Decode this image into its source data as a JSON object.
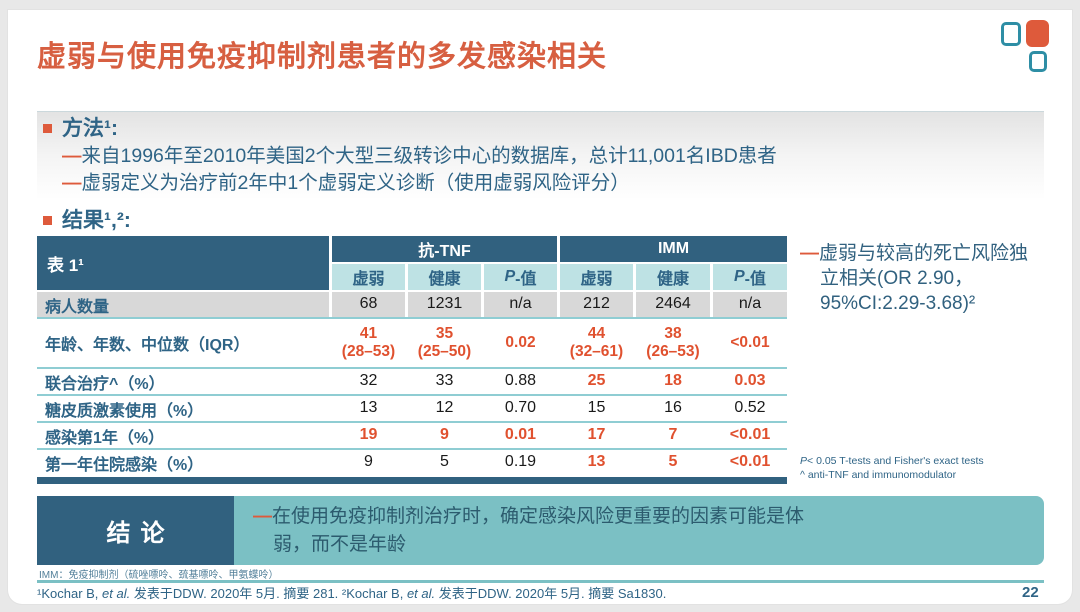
{
  "colors": {
    "accent_orange": "#DE5A3B",
    "value_orange": "#E0512F",
    "dark_blue": "#31617F",
    "teal_light": "#BEE2E4",
    "teal": "#7BC0C4",
    "row_gray": "#D8D8D8"
  },
  "title": "虚弱与使用免疫抑制剂患者的多发感染相关",
  "decor": {
    "squares": [
      "teal-outline-square",
      "orange-filled-square",
      "teal-outline-square"
    ]
  },
  "methods": {
    "heading": "方法¹:",
    "items": [
      {
        "dash": "—",
        "text": "来自1996年至2010年美国2个大型三级转诊中心的数据库，总计11,001名IBD患者"
      },
      {
        "dash": "—",
        "text": "虚弱定义为治疗前2年中1个虚弱定义诊断（使用虚弱风险评分）"
      }
    ]
  },
  "results": {
    "heading": "结果¹,²:"
  },
  "table": {
    "corner_label": "表 1¹",
    "group_headers": [
      "抗-TNF",
      "IMM"
    ],
    "subheader": {
      "frail": "虚弱",
      "healthy": "健康",
      "p_italic": "P",
      "p_rest": "-值"
    },
    "rows": [
      {
        "label": "病人数量",
        "values": [
          "68",
          "1231",
          "n/a",
          "212",
          "2464",
          "n/a"
        ],
        "highlighted": [
          false,
          false,
          false,
          false,
          false,
          false
        ]
      },
      {
        "label": "年龄、年数、中位数（IQR）",
        "values": [
          "41\n(28–53)",
          "35\n(25–50)",
          "0.02",
          "44\n(32–61)",
          "38\n(26–53)",
          "<0.01"
        ],
        "highlighted": [
          true,
          true,
          true,
          true,
          true,
          true
        ]
      },
      {
        "label": "联合治疗^（%）",
        "values": [
          "32",
          "33",
          "0.88",
          "25",
          "18",
          "0.03"
        ],
        "highlighted": [
          false,
          false,
          false,
          true,
          true,
          true
        ]
      },
      {
        "label": "糖皮质激素使用（%）",
        "values": [
          "13",
          "12",
          "0.70",
          "15",
          "16",
          "0.52"
        ],
        "highlighted": [
          false,
          false,
          false,
          false,
          false,
          false
        ]
      },
      {
        "label": "感染第1年（%）",
        "values": [
          "19",
          "9",
          "0.01",
          "17",
          "7",
          "<0.01"
        ],
        "highlighted": [
          true,
          true,
          true,
          true,
          true,
          true
        ]
      },
      {
        "label": "第一年住院感染（%）",
        "values": [
          "9",
          "5",
          "0.19",
          "13",
          "5",
          "<0.01"
        ],
        "highlighted": [
          false,
          false,
          false,
          true,
          true,
          true
        ]
      }
    ]
  },
  "annotation": {
    "dash": "—",
    "text": "虚弱与较高的死亡风险独立相关(OR 2.90，95%CI:2.29-3.68)²"
  },
  "stats_note": {
    "p_italic": "P",
    "line1_rest": "< 0.05 T-tests and Fisher's exact tests",
    "line2": "^ anti-TNF and immunomodulator"
  },
  "conclusion": {
    "label": "结论",
    "dash": "—",
    "text": "在使用免疫抑制剂治疗时，确定感染风险更重要的因素可能是体弱，而不是年龄"
  },
  "footnote_imm": "IMM：免疫抑制剂（硫唑嘌呤、巯基嘌呤、甲氨蝶呤）",
  "references": {
    "parts": [
      {
        "text": "¹Kochar B, "
      },
      {
        "text": "et al."
      },
      {
        "text": " 发表于DDW. 2020年 5月. 摘要 281. "
      },
      {
        "text": "²Kochar B, "
      },
      {
        "text": "et al."
      },
      {
        "text": " 发表于DDW. 2020年 5月. 摘要 Sa1830."
      }
    ]
  },
  "page_number": "22"
}
